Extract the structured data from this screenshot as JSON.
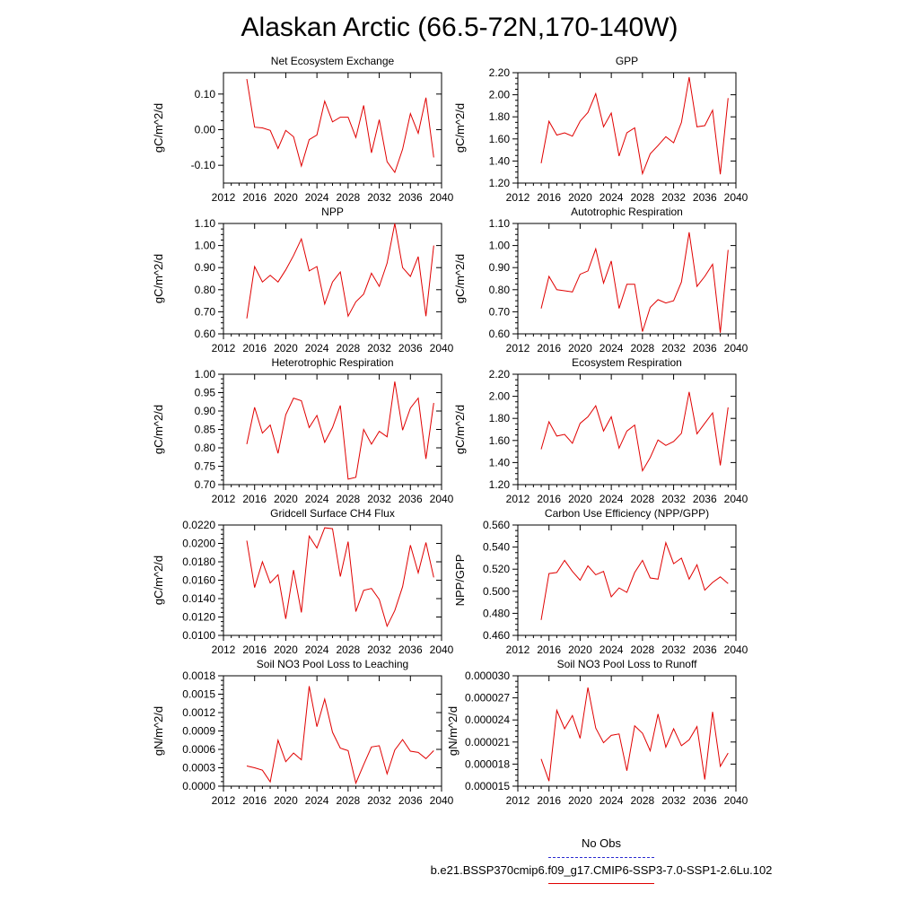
{
  "title": "Alaskan Arctic (66.5-72N,170-140W)",
  "legend": {
    "noobs_label": "No Obs",
    "run_label": "b.e21.BSSP370cmip6.f09_g17.CMIP6-SSP3-7.0-SSP1-2.6Lu.102",
    "noobs_color": "#2b2bd0",
    "run_color": "#e00000"
  },
  "chart_data": [
    {
      "type": "line",
      "title": "Net Ecosystem Exchange",
      "ylabel": "gC/m^2/d",
      "xlim": [
        2012,
        2040
      ],
      "xticks": [
        "2012",
        "2016",
        "2020",
        "2024",
        "2028",
        "2032",
        "2036",
        "2040"
      ],
      "ylim": [
        -0.15,
        0.16
      ],
      "yticks": [
        "-0.10",
        "0.00",
        "0.10"
      ],
      "x": [
        2015,
        2016,
        2017,
        2018,
        2019,
        2020,
        2021,
        2022,
        2023,
        2024,
        2025,
        2026,
        2027,
        2028,
        2029,
        2030,
        2031,
        2032,
        2033,
        2034,
        2035,
        2036,
        2037,
        2038,
        2039
      ],
      "values": [
        0.142,
        0.007,
        0.005,
        -0.002,
        -0.053,
        -0.002,
        -0.02,
        -0.102,
        -0.028,
        -0.015,
        0.08,
        0.022,
        0.035,
        0.035,
        -0.022,
        0.068,
        -0.065,
        0.028,
        -0.09,
        -0.12,
        -0.055,
        0.045,
        -0.01,
        0.09,
        -0.078
      ]
    },
    {
      "type": "line",
      "title": "GPP",
      "ylabel": "gC/m^2/d",
      "xlim": [
        2012,
        2040
      ],
      "xticks": [
        "2012",
        "2016",
        "2020",
        "2024",
        "2028",
        "2032",
        "2036",
        "2040"
      ],
      "ylim": [
        1.2,
        2.2
      ],
      "yticks": [
        "1.20",
        "1.40",
        "1.60",
        "1.80",
        "2.00",
        "2.20"
      ],
      "x": [
        2015,
        2016,
        2017,
        2018,
        2019,
        2020,
        2021,
        2022,
        2023,
        2024,
        2025,
        2026,
        2027,
        2028,
        2029,
        2030,
        2031,
        2032,
        2033,
        2034,
        2035,
        2036,
        2037,
        2038,
        2039
      ],
      "values": [
        1.38,
        1.76,
        1.635,
        1.655,
        1.625,
        1.76,
        1.84,
        2.01,
        1.71,
        1.835,
        1.445,
        1.655,
        1.7,
        1.285,
        1.465,
        1.54,
        1.62,
        1.565,
        1.75,
        2.16,
        1.71,
        1.72,
        1.86,
        1.28,
        1.97
      ]
    },
    {
      "type": "line",
      "title": "NPP",
      "ylabel": "gC/m^2/d",
      "xlim": [
        2012,
        2040
      ],
      "xticks": [
        "2012",
        "2016",
        "2020",
        "2024",
        "2028",
        "2032",
        "2036",
        "2040"
      ],
      "ylim": [
        0.6,
        1.1
      ],
      "yticks": [
        "0.60",
        "0.70",
        "0.80",
        "0.90",
        "1.00",
        "1.10"
      ],
      "x": [
        2015,
        2016,
        2017,
        2018,
        2019,
        2020,
        2021,
        2022,
        2023,
        2024,
        2025,
        2026,
        2027,
        2028,
        2029,
        2030,
        2031,
        2032,
        2033,
        2034,
        2035,
        2036,
        2037,
        2038,
        2039
      ],
      "values": [
        0.67,
        0.905,
        0.835,
        0.865,
        0.835,
        0.89,
        0.955,
        1.03,
        0.885,
        0.905,
        0.735,
        0.835,
        0.88,
        0.68,
        0.745,
        0.78,
        0.875,
        0.815,
        0.92,
        1.1,
        0.9,
        0.86,
        0.95,
        0.68,
        1.0
      ]
    },
    {
      "type": "line",
      "title": "Autotrophic Respiration",
      "ylabel": "gC/m^2/d",
      "xlim": [
        2012,
        2040
      ],
      "xticks": [
        "2012",
        "2016",
        "2020",
        "2024",
        "2028",
        "2032",
        "2036",
        "2040"
      ],
      "ylim": [
        0.6,
        1.1
      ],
      "yticks": [
        "0.60",
        "0.70",
        "0.80",
        "0.90",
        "1.00",
        "1.10"
      ],
      "x": [
        2015,
        2016,
        2017,
        2018,
        2019,
        2020,
        2021,
        2022,
        2023,
        2024,
        2025,
        2026,
        2027,
        2028,
        2029,
        2030,
        2031,
        2032,
        2033,
        2034,
        2035,
        2036,
        2037,
        2038,
        2039
      ],
      "values": [
        0.715,
        0.86,
        0.8,
        0.795,
        0.79,
        0.87,
        0.885,
        0.985,
        0.83,
        0.93,
        0.715,
        0.825,
        0.825,
        0.61,
        0.72,
        0.755,
        0.74,
        0.75,
        0.835,
        1.06,
        0.815,
        0.86,
        0.915,
        0.605,
        0.98
      ]
    },
    {
      "type": "line",
      "title": "Heterotrophic Respiration",
      "ylabel": "gC/m^2/d",
      "xlim": [
        2012,
        2040
      ],
      "xticks": [
        "2012",
        "2016",
        "2020",
        "2024",
        "2028",
        "2032",
        "2036",
        "2040"
      ],
      "ylim": [
        0.7,
        1.0
      ],
      "yticks": [
        "0.70",
        "0.75",
        "0.80",
        "0.85",
        "0.90",
        "0.95",
        "1.00"
      ],
      "x": [
        2015,
        2016,
        2017,
        2018,
        2019,
        2020,
        2021,
        2022,
        2023,
        2024,
        2025,
        2026,
        2027,
        2028,
        2029,
        2030,
        2031,
        2032,
        2033,
        2034,
        2035,
        2036,
        2037,
        2038,
        2039
      ],
      "values": [
        0.81,
        0.91,
        0.84,
        0.862,
        0.785,
        0.89,
        0.935,
        0.928,
        0.855,
        0.888,
        0.815,
        0.855,
        0.915,
        0.715,
        0.72,
        0.85,
        0.81,
        0.845,
        0.83,
        0.98,
        0.848,
        0.908,
        0.935,
        0.77,
        0.922
      ]
    },
    {
      "type": "line",
      "title": "Ecosystem Respiration",
      "ylabel": "gC/m^2/d",
      "xlim": [
        2012,
        2040
      ],
      "xticks": [
        "2012",
        "2016",
        "2020",
        "2024",
        "2028",
        "2032",
        "2036",
        "2040"
      ],
      "ylim": [
        1.2,
        2.2
      ],
      "yticks": [
        "1.20",
        "1.40",
        "1.60",
        "1.80",
        "2.00",
        "2.20"
      ],
      "x": [
        2015,
        2016,
        2017,
        2018,
        2019,
        2020,
        2021,
        2022,
        2023,
        2024,
        2025,
        2026,
        2027,
        2028,
        2029,
        2030,
        2031,
        2032,
        2033,
        2034,
        2035,
        2036,
        2037,
        2038,
        2039
      ],
      "values": [
        1.52,
        1.77,
        1.64,
        1.655,
        1.575,
        1.755,
        1.815,
        1.915,
        1.685,
        1.815,
        1.53,
        1.685,
        1.74,
        1.325,
        1.445,
        1.605,
        1.555,
        1.59,
        1.665,
        2.04,
        1.66,
        1.755,
        1.85,
        1.375,
        1.9
      ]
    },
    {
      "type": "line",
      "title": "Gridcell Surface CH4 Flux",
      "ylabel": "gC/m^2/d",
      "xlim": [
        2012,
        2040
      ],
      "xticks": [
        "2012",
        "2016",
        "2020",
        "2024",
        "2028",
        "2032",
        "2036",
        "2040"
      ],
      "ylim": [
        0.01,
        0.022
      ],
      "yticks": [
        "0.0100",
        "0.0120",
        "0.0140",
        "0.0160",
        "0.0180",
        "0.0200",
        "0.0220"
      ],
      "x": [
        2015,
        2016,
        2017,
        2018,
        2019,
        2020,
        2021,
        2022,
        2023,
        2024,
        2025,
        2026,
        2027,
        2028,
        2029,
        2030,
        2031,
        2032,
        2033,
        2034,
        2035,
        2036,
        2037,
        2038,
        2039
      ],
      "values": [
        0.0203,
        0.0152,
        0.018,
        0.0157,
        0.0166,
        0.0118,
        0.0171,
        0.0125,
        0.0208,
        0.0195,
        0.0217,
        0.0216,
        0.0164,
        0.0202,
        0.0126,
        0.0149,
        0.0151,
        0.0139,
        0.011,
        0.0127,
        0.0153,
        0.0198,
        0.0168,
        0.0201,
        0.0163
      ]
    },
    {
      "type": "line",
      "title": "Carbon Use Efficiency (NPP/GPP)",
      "ylabel": "NPP/GPP",
      "xlim": [
        2012,
        2040
      ],
      "xticks": [
        "2012",
        "2016",
        "2020",
        "2024",
        "2028",
        "2032",
        "2036",
        "2040"
      ],
      "ylim": [
        0.46,
        0.56
      ],
      "yticks": [
        "0.460",
        "0.480",
        "0.500",
        "0.520",
        "0.540",
        "0.560"
      ],
      "x": [
        2015,
        2016,
        2017,
        2018,
        2019,
        2020,
        2021,
        2022,
        2023,
        2024,
        2025,
        2026,
        2027,
        2028,
        2029,
        2030,
        2031,
        2032,
        2033,
        2034,
        2035,
        2036,
        2037,
        2038,
        2039
      ],
      "values": [
        0.474,
        0.516,
        0.517,
        0.528,
        0.518,
        0.51,
        0.523,
        0.515,
        0.518,
        0.495,
        0.503,
        0.499,
        0.517,
        0.528,
        0.512,
        0.511,
        0.544,
        0.525,
        0.53,
        0.511,
        0.524,
        0.501,
        0.508,
        0.513,
        0.507
      ]
    },
    {
      "type": "line",
      "title": "Soil NO3 Pool Loss to Leaching",
      "ylabel": "gN/m^2/d",
      "xlim": [
        2012,
        2040
      ],
      "xticks": [
        "2012",
        "2016",
        "2020",
        "2024",
        "2028",
        "2032",
        "2036",
        "2040"
      ],
      "ylim": [
        0,
        0.0018
      ],
      "yticks": [
        "0.0000",
        "0.0003",
        "0.0006",
        "0.0009",
        "0.0012",
        "0.0015",
        "0.0018"
      ],
      "x": [
        2015,
        2016,
        2017,
        2018,
        2019,
        2020,
        2021,
        2022,
        2023,
        2024,
        2025,
        2026,
        2027,
        2028,
        2029,
        2030,
        2031,
        2032,
        2033,
        2034,
        2035,
        2036,
        2037,
        2038,
        2039
      ],
      "values": [
        0.00033,
        0.0003,
        0.00026,
        7e-05,
        0.00075,
        0.0004,
        0.00054,
        0.00043,
        0.00163,
        0.00097,
        0.00142,
        0.00088,
        0.00062,
        0.00058,
        5e-05,
        0.00035,
        0.00064,
        0.00066,
        0.0002,
        0.00059,
        0.00076,
        0.00057,
        0.00055,
        0.00045,
        0.00058
      ]
    },
    {
      "type": "line",
      "title": "Soil NO3 Pool Loss to Runoff",
      "ylabel": "gN/m^2/d",
      "xlim": [
        2012,
        2040
      ],
      "xticks": [
        "2012",
        "2016",
        "2020",
        "2024",
        "2028",
        "2032",
        "2036",
        "2040"
      ],
      "ylim": [
        1.5e-05,
        3e-05
      ],
      "yticks": [
        "0.000015",
        "0.000018",
        "0.000021",
        "0.000024",
        "0.000027",
        "0.000030"
      ],
      "x": [
        2015,
        2016,
        2017,
        2018,
        2019,
        2020,
        2021,
        2022,
        2023,
        2024,
        2025,
        2026,
        2027,
        2028,
        2029,
        2030,
        2031,
        2032,
        2033,
        2034,
        2035,
        2036,
        2037,
        2038,
        2039
      ],
      "values": [
        1.87e-05,
        1.57e-05,
        2.53e-05,
        2.28e-05,
        2.46e-05,
        2.15e-05,
        2.84e-05,
        2.29e-05,
        2.09e-05,
        2.19e-05,
        2.21e-05,
        1.71e-05,
        2.32e-05,
        2.22e-05,
        1.98e-05,
        2.48e-05,
        2.03e-05,
        2.28e-05,
        2.05e-05,
        2.13e-05,
        2.31e-05,
        1.59e-05,
        2.51e-05,
        1.77e-05,
        1.95e-05
      ]
    }
  ]
}
